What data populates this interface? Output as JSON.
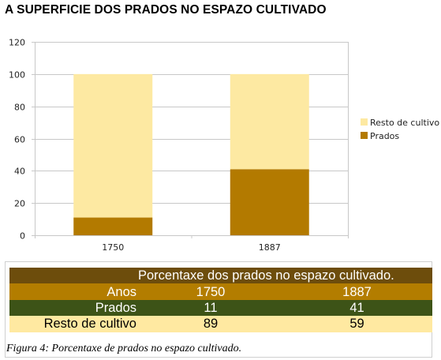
{
  "title": "A SUPERFICIE DOS PRADOS NO ESPAZO CULTIVADO",
  "colors": {
    "resto": "#fde9a2",
    "prados": "#b37a00",
    "grid": "#c8c8c8",
    "table_head": "#6d4d0c",
    "table_years": "#b37d00",
    "table_prados": "#3d5317",
    "table_resto": "#ffe9a1"
  },
  "chart_data": {
    "type": "bar",
    "stacked": true,
    "categories": [
      "1750",
      "1887"
    ],
    "series": [
      {
        "name": "Prados",
        "values": [
          11,
          41
        ]
      },
      {
        "name": "Resto de cultivo",
        "values": [
          89,
          59
        ]
      }
    ],
    "ylim": [
      0,
      120
    ],
    "yticks": [
      0,
      20,
      40,
      60,
      80,
      100,
      120
    ],
    "grid": true,
    "legend_position": "right",
    "legend": [
      "Resto de cultivo",
      "Prados"
    ]
  },
  "table": {
    "header": "Porcentaxe dos prados no espazo cultivado.",
    "rows": [
      {
        "label": "Anos",
        "v1": "1750",
        "v2": "1887"
      },
      {
        "label": "Prados",
        "v1": "11",
        "v2": "41"
      },
      {
        "label": "Resto de cultivo",
        "v1": "89",
        "v2": "59"
      }
    ]
  },
  "caption": "Figura 4: Porcentaxe de prados no espazo cultivado."
}
